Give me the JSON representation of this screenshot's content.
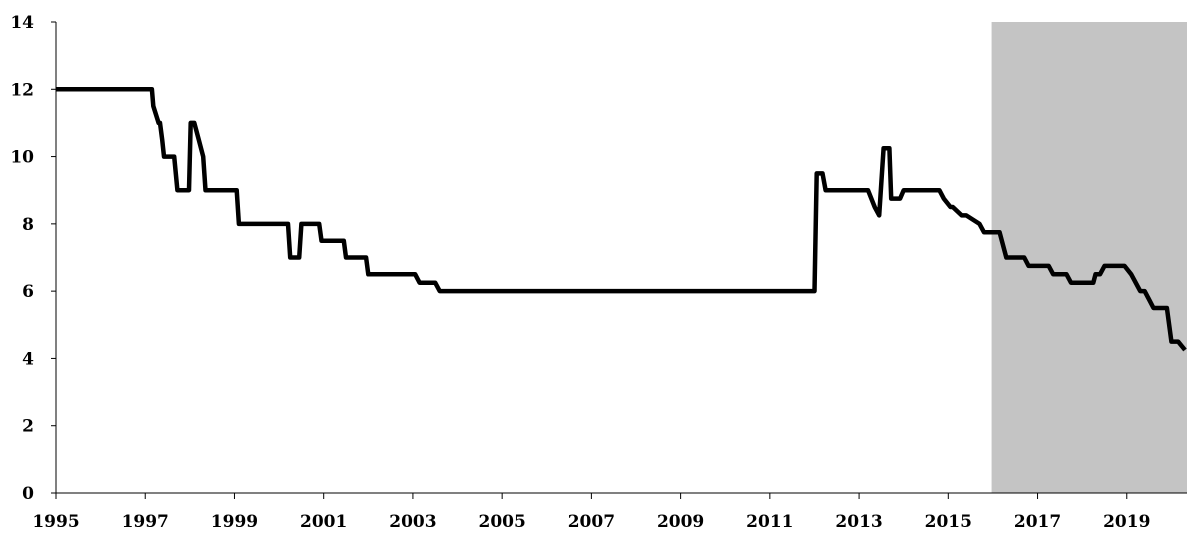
{
  "chart_data": {
    "type": "line",
    "title": "",
    "xlabel": "",
    "ylabel": "",
    "xlim": [
      1995,
      2020.35
    ],
    "ylim": [
      0,
      14
    ],
    "x_ticks": [
      "1995",
      "1997",
      "1999",
      "2001",
      "2003",
      "2005",
      "2007",
      "2009",
      "2011",
      "2013",
      "2015",
      "2017",
      "2019"
    ],
    "y_ticks": [
      "0",
      "2",
      "4",
      "6",
      "8",
      "10",
      "12",
      "14"
    ],
    "grid": false,
    "legend": "none",
    "shaded_region": {
      "x_start": 2015.97,
      "x_end": 2020.35,
      "color": "#c4c4c4"
    },
    "line_color": "#000000",
    "series": [
      {
        "x": [
          1995.0,
          1997.15,
          1997.18,
          1997.3,
          1997.33,
          1997.38,
          1997.42,
          1997.65,
          1997.72,
          1997.98,
          1998.02,
          1998.1,
          1998.2,
          1998.3,
          1998.35,
          1999.05,
          1999.1,
          2000.2,
          2000.25,
          2000.45,
          2000.5,
          2000.9,
          2000.95,
          2001.45,
          2001.5,
          2001.95,
          2002.0,
          2002.05,
          2003.05,
          2003.15,
          2003.5,
          2003.6,
          2012.0,
          2012.05,
          2012.18,
          2012.25,
          2012.9,
          2013.2,
          2013.35,
          2013.45,
          2013.55,
          2013.68,
          2013.72,
          2013.92,
          2014.0,
          2014.8,
          2014.9,
          2015.05,
          2015.1,
          2015.3,
          2015.4,
          2015.7,
          2015.8,
          2016.15,
          2016.3,
          2016.7,
          2016.8,
          2017.25,
          2017.35,
          2017.65,
          2017.75,
          2018.25,
          2018.3,
          2018.4,
          2018.5,
          2018.55,
          2018.95,
          2019.1,
          2019.2,
          2019.3,
          2019.4,
          2019.5,
          2019.6,
          2019.9,
          2020.0,
          2020.15,
          2020.35
        ],
        "y": [
          12,
          12,
          11.5,
          11,
          11,
          10.5,
          10,
          10,
          9,
          9,
          11,
          11,
          10.5,
          10,
          9,
          9,
          8,
          8,
          7,
          7,
          8,
          8,
          7.5,
          7.5,
          7,
          7,
          6.5,
          6.5,
          6.5,
          6.25,
          6.25,
          6,
          6,
          9.5,
          9.5,
          9,
          9,
          9,
          8.5,
          8.25,
          10.25,
          10.25,
          8.75,
          8.75,
          9,
          9,
          8.75,
          8.5,
          8.5,
          8.25,
          8.25,
          8,
          7.75,
          7.75,
          7,
          7,
          6.75,
          6.75,
          6.5,
          6.5,
          6.25,
          6.25,
          6.5,
          6.5,
          6.75,
          6.75,
          6.75,
          6.5,
          6.25,
          6.0,
          6.0,
          5.75,
          5.5,
          5.5,
          4.5,
          4.5,
          4.25
        ]
      }
    ]
  }
}
